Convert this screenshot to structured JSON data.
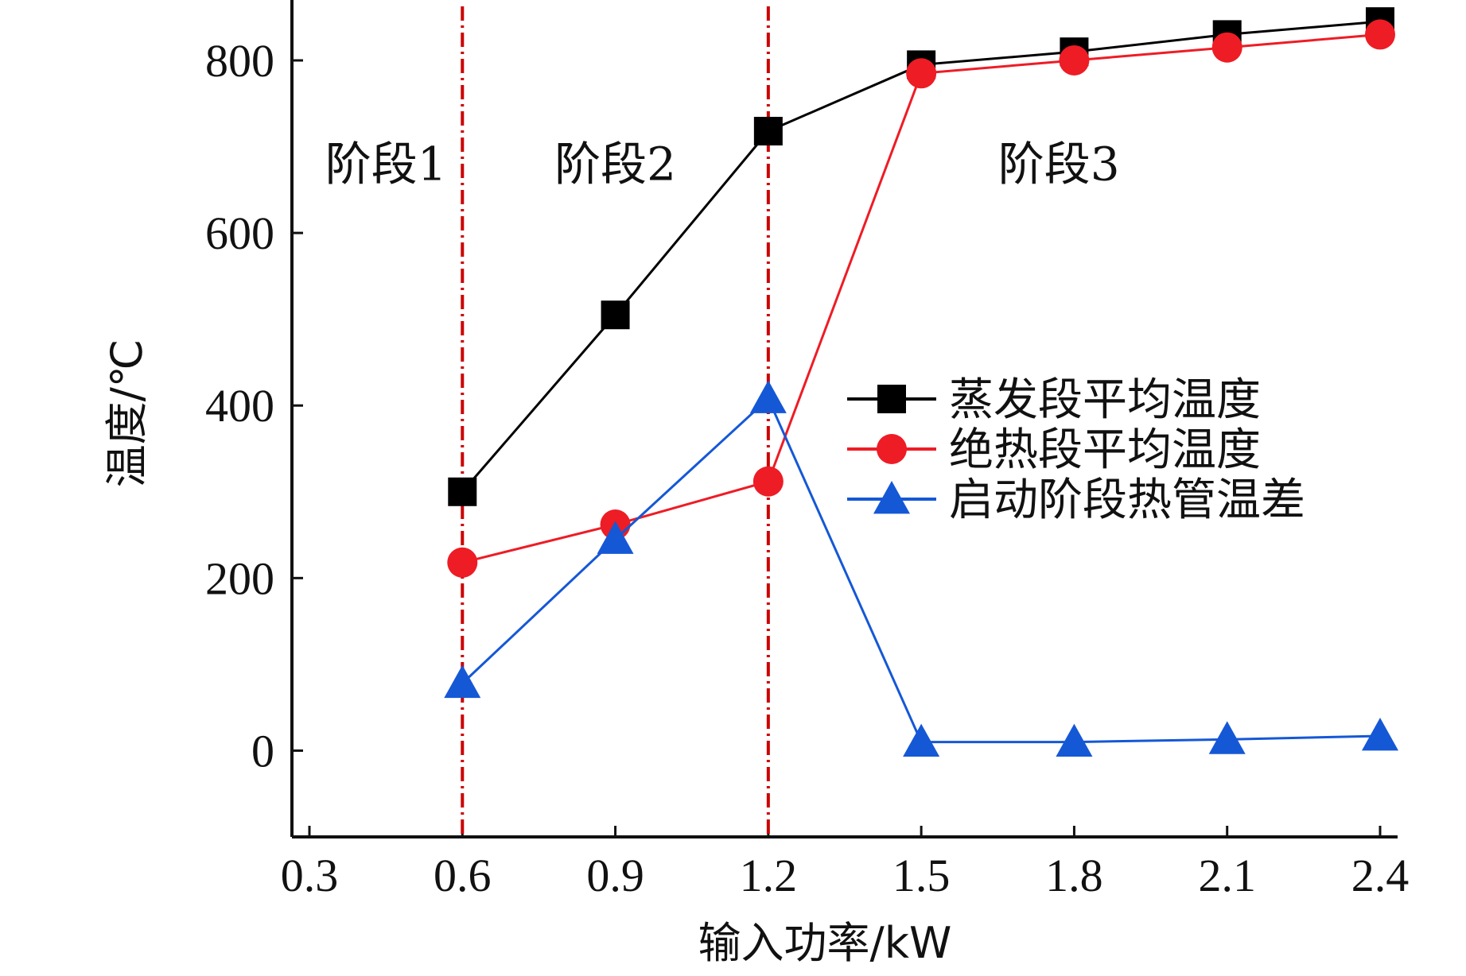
{
  "chart_data": {
    "type": "line",
    "xlabel": "输入功率/kW",
    "ylabel": "温度/℃",
    "xlim": [
      0.3,
      2.4
    ],
    "ylim": [
      -100,
      870
    ],
    "x_ticks": [
      0.3,
      0.6,
      0.9,
      1.2,
      1.5,
      1.8,
      2.1,
      2.4
    ],
    "x_tick_labels": [
      "0.3",
      "0.6",
      "0.9",
      "1.2",
      "1.5",
      "1.8",
      "2.1",
      "2.4"
    ],
    "y_ticks": [
      0,
      200,
      400,
      600,
      800
    ],
    "y_tick_labels": [
      "0",
      "200",
      "400",
      "600",
      "800"
    ],
    "grid": false,
    "legend_position": "center-right",
    "stage_lines_x": [
      0.6,
      1.2
    ],
    "stage_line_color": "#cc0000",
    "stage_labels": [
      {
        "text": "阶段1",
        "x": 0.45,
        "y": 680
      },
      {
        "text": "阶段2",
        "x": 0.9,
        "y": 680
      },
      {
        "text": "阶段3",
        "x": 1.77,
        "y": 680
      }
    ],
    "series": [
      {
        "name": "蒸发段平均温度",
        "color": "#000000",
        "marker": "square",
        "x": [
          0.6,
          0.9,
          1.2,
          1.5,
          1.8,
          2.1,
          2.4
        ],
        "values": [
          300,
          505,
          718,
          795,
          810,
          830,
          845
        ]
      },
      {
        "name": "绝热段平均温度",
        "color": "#ee1c25",
        "marker": "circle",
        "x": [
          0.6,
          0.9,
          1.2,
          1.5,
          1.8,
          2.1,
          2.4
        ],
        "values": [
          218,
          262,
          312,
          785,
          800,
          815,
          830
        ]
      },
      {
        "name": "启动阶段热管温差",
        "color": "#1558d6",
        "marker": "triangle",
        "x": [
          0.6,
          0.9,
          1.2,
          1.5,
          1.8,
          2.1,
          2.4
        ],
        "values": [
          78,
          245,
          408,
          10,
          10,
          13,
          17
        ]
      }
    ]
  }
}
